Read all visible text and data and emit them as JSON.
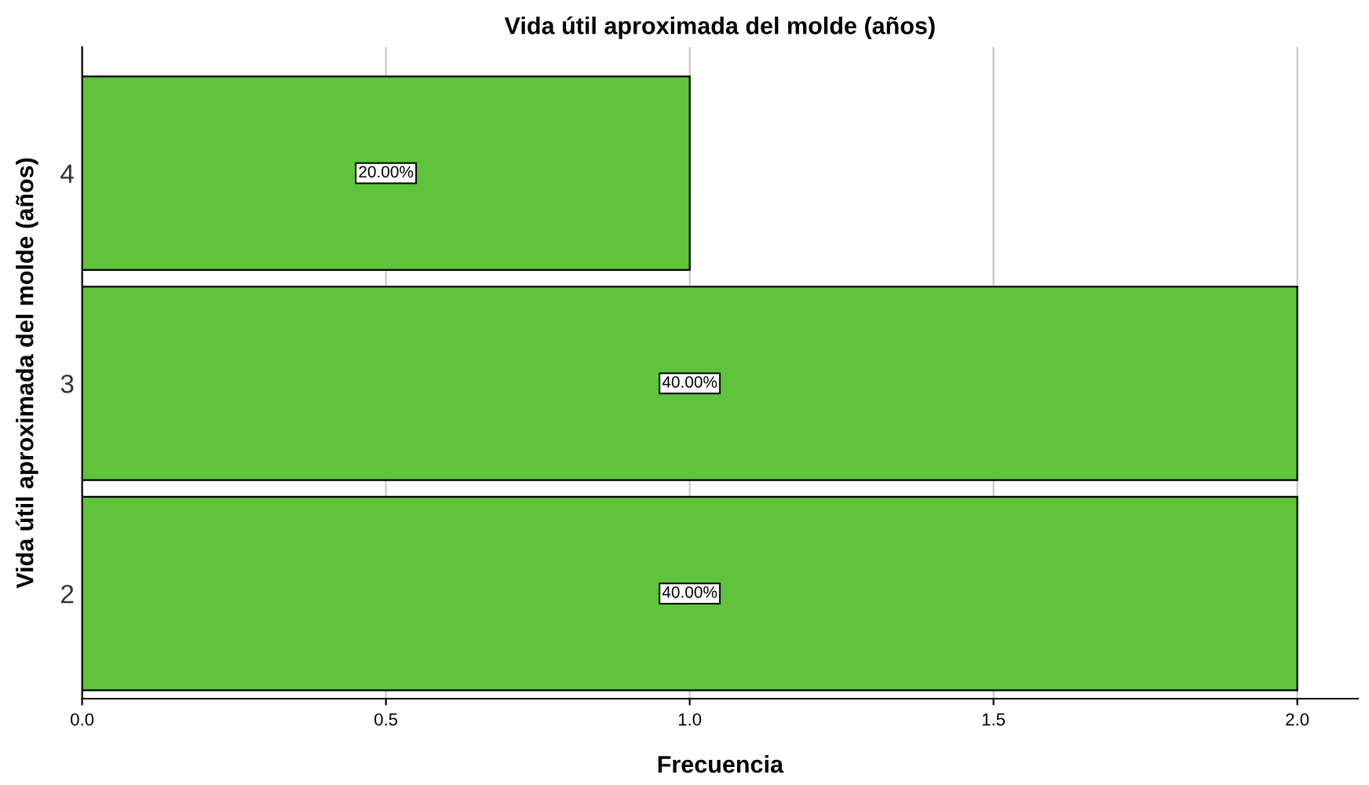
{
  "chart_data": {
    "type": "bar",
    "orientation": "horizontal",
    "title": "Vida útil aproximada del molde (años)",
    "xlabel": "Frecuencia",
    "ylabel": "Vida útil aproximada del molde (años)",
    "categories": [
      "4",
      "3",
      "2"
    ],
    "values": [
      1,
      2,
      2
    ],
    "annotations": [
      "20.00%",
      "40.00%",
      "40.00%"
    ],
    "color": "#5fc43c",
    "xlim": [
      0,
      2.1
    ],
    "xticks": [
      {
        "value": 0,
        "label": "0.0"
      },
      {
        "value": 0.5,
        "label": "0.5"
      },
      {
        "value": 1,
        "label": "1.0"
      },
      {
        "value": 1.5,
        "label": "1.5"
      },
      {
        "value": 2,
        "label": "2.0"
      }
    ],
    "grid": "x"
  }
}
